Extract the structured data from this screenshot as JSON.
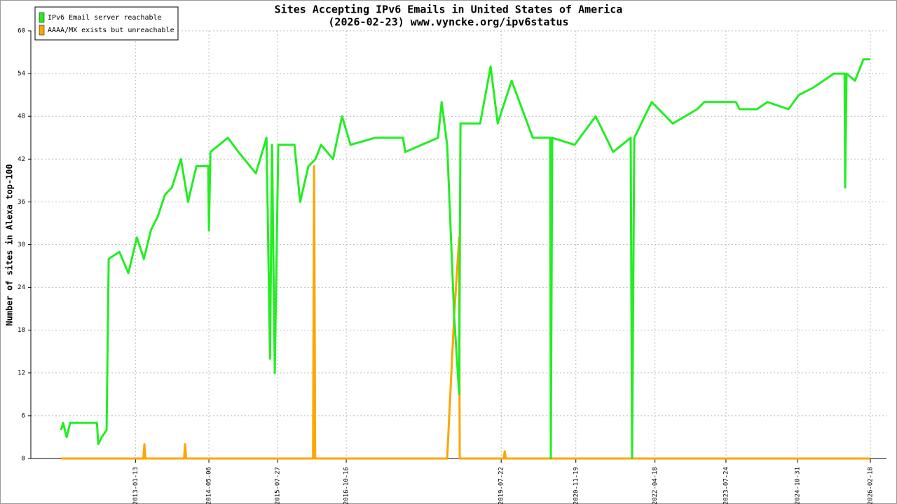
{
  "chart_data": {
    "type": "line",
    "title": "Sites Accepting IPv6 Emails in United States of America",
    "subtitle": "(2026-02-23) www.vyncke.org/ipv6status",
    "y_label": "Number of sites in Alexa top-100",
    "xlim": [
      "2011-03-04",
      "2026-06-03"
    ],
    "xticks": [
      "2013-01-13",
      "2014-05-06",
      "2015-07-27",
      "2016-10-16",
      "2019-07-22",
      "2020-11-19",
      "2022-04-18",
      "2023-07-24",
      "2024-10-31",
      "2026-02-18"
    ],
    "ylim": [
      0,
      60
    ],
    "yticks": [
      0,
      6,
      12,
      18,
      24,
      30,
      36,
      42,
      48,
      54,
      60
    ],
    "grid": true,
    "legend": "top-left",
    "series": [
      {
        "name": "IPv6 Email server reachable",
        "color": "#22ee22",
        "x": [
          "2011-09-17",
          "2011-09-30",
          "2011-10-23",
          "2011-11-15",
          "2012-05-07",
          "2012-05-16",
          "2012-06-07",
          "2012-07-09",
          "2012-07-23",
          "2012-09-30",
          "2012-11-28",
          "2013-01-22",
          "2013-03-09",
          "2013-04-23",
          "2013-06-08",
          "2013-07-24",
          "2013-09-07",
          "2013-11-05",
          "2013-12-21",
          "2014-02-14",
          "2014-05-02",
          "2014-05-06",
          "2014-05-16",
          "2014-09-07",
          "2014-11-14",
          "2015-03-08",
          "2015-05-16",
          "2015-06-08",
          "2015-06-21",
          "2015-07-09",
          "2015-08-01",
          "2015-11-14",
          "2015-12-21",
          "2016-02-13",
          "2016-03-30",
          "2016-05-05",
          "2016-07-22",
          "2016-09-19",
          "2016-11-13",
          "2017-04-22",
          "2017-10-21",
          "2017-11-04",
          "2018-06-06",
          "2018-06-29",
          "2018-08-04",
          "2018-09-19",
          "2018-10-21",
          "2018-10-30",
          "2019-03-07",
          "2019-05-14",
          "2019-06-29",
          "2019-09-28",
          "2020-02-12",
          "2020-06-05",
          "2020-06-09",
          "2020-06-18",
          "2020-11-11",
          "2021-03-28",
          "2021-07-20",
          "2021-11-11",
          "2021-11-20",
          "2021-12-04",
          "2022-03-28",
          "2022-08-12",
          "2023-01-18",
          "2023-03-05",
          "2023-09-27",
          "2023-10-20",
          "2024-02-11",
          "2024-04-19",
          "2024-09-03",
          "2024-11-10",
          "2025-02-09",
          "2025-04-19",
          "2025-06-26",
          "2025-09-03",
          "2025-09-07",
          "2025-09-16",
          "2025-11-10",
          "2026-01-04",
          "2026-02-18"
        ],
        "values": [
          4,
          5,
          3,
          5,
          5,
          2,
          3,
          4,
          28,
          29,
          26,
          31,
          28,
          32,
          34,
          37,
          38,
          42,
          36,
          41,
          41,
          32,
          43,
          45,
          43,
          40,
          45,
          14,
          44,
          12,
          44,
          44,
          36,
          41,
          42,
          44,
          42,
          48,
          44,
          45,
          45,
          43,
          45,
          50,
          44,
          20,
          9,
          47,
          47,
          55,
          47,
          53,
          45,
          45,
          0,
          45,
          44,
          48,
          43,
          45,
          0,
          45,
          50,
          47,
          49,
          50,
          50,
          49,
          49,
          50,
          49,
          51,
          52,
          53,
          54,
          54,
          38,
          54,
          53,
          56,
          56
        ]
      },
      {
        "name": "AAAA/MX exists but unreachable",
        "color": "#ffa500",
        "x": [
          "2011-09-17",
          "2013-03-05",
          "2013-03-12",
          "2013-03-19",
          "2013-11-25",
          "2013-12-02",
          "2013-12-09",
          "2016-03-14",
          "2016-03-21",
          "2016-03-28",
          "2018-08-04",
          "2018-09-19",
          "2018-10-21",
          "2018-10-25",
          "2019-08-07",
          "2019-08-14",
          "2019-08-21",
          "2026-02-18"
        ],
        "values": [
          0,
          0,
          2,
          0,
          0,
          2,
          0,
          0,
          41,
          0,
          0,
          20,
          31,
          0,
          0,
          1,
          0,
          0
        ]
      }
    ]
  }
}
